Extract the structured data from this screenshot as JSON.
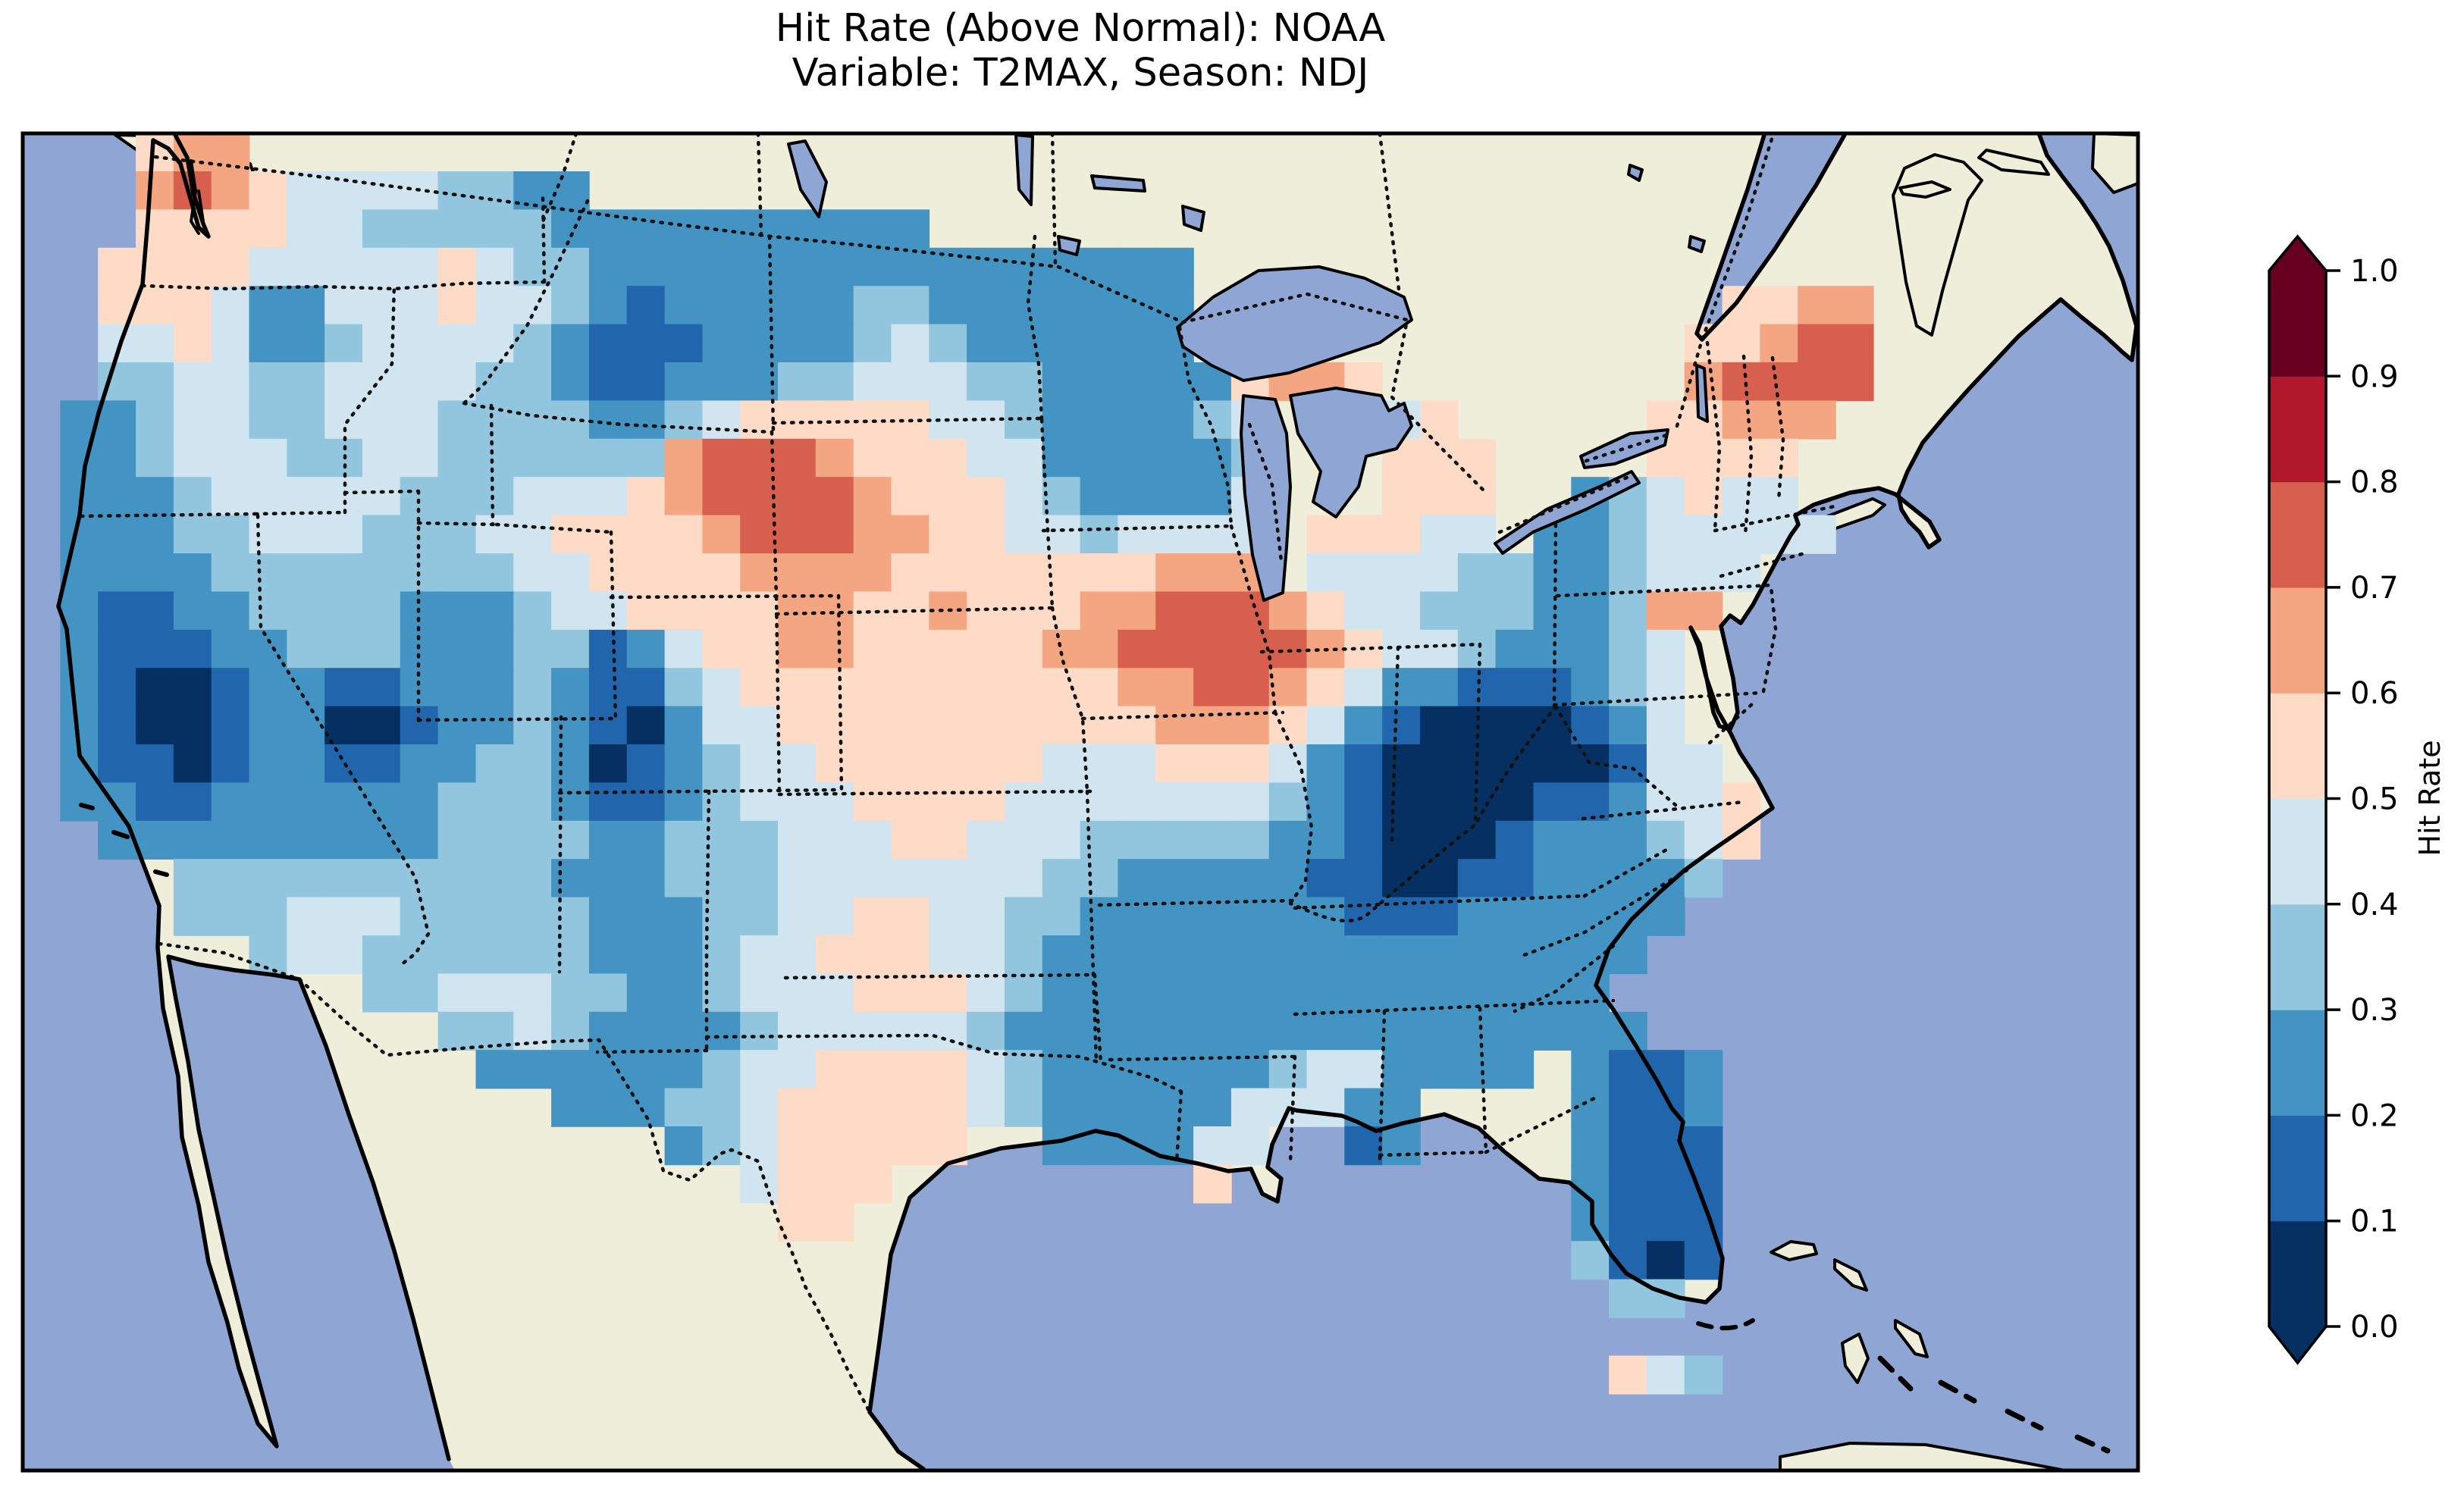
{
  "title": {
    "line1": "Hit Rate (Above Normal): NOAA",
    "line2": "Variable: T2MAX, Season: NDJ"
  },
  "colorbar": {
    "label": "Hit Rate",
    "tick_labels": [
      "0.0",
      "0.1",
      "0.2",
      "0.3",
      "0.4",
      "0.5",
      "0.6",
      "0.7",
      "0.8",
      "0.9",
      "1.0"
    ],
    "extend": "both"
  },
  "chart_data": {
    "type": "heatmap",
    "title": "Hit Rate (Above Normal): NOAA",
    "subtitle": "Variable: T2MAX, Season: NDJ",
    "metric": "Hit Rate (Above Normal)",
    "source_label": "NOAA",
    "variable": "T2MAX",
    "season": "NDJ",
    "region": "Contiguous United States map with Canada/Mexico land, state borders dotted",
    "colorbar_label": "Hit Rate",
    "value_range": [
      0.0,
      1.0
    ],
    "bin_edges": [
      0.0,
      0.1,
      0.2,
      0.3,
      0.4,
      0.5,
      0.6,
      0.7,
      0.8,
      0.9,
      1.0
    ],
    "bin_colors": [
      "#053061",
      "#2166ac",
      "#4393c3",
      "#92c5de",
      "#d1e5f0",
      "#fddbc7",
      "#f4a582",
      "#d6604d",
      "#b2182b",
      "#67001f"
    ],
    "map_colors": {
      "ocean": "#8fa6d4",
      "land": "#eeeedb",
      "coastline": "#000000",
      "borders": "#111111"
    },
    "grid": {
      "cols": 56,
      "rows": 35,
      "cell_encoding": "char k (0-9) = hit-rate bin [k/10,(k+1)/10); '.' = no data / outside CONUS",
      "rows_data": [
        "...566..................................................",
        "...676544443322.........................................",
        "...555544333332222222222................................",
        "..55554444454332222222222222222.........................",
        "..55542244454432122222332222222..............5566.......",
        "..44542234444321112222343222222.............55677.......",
        "..3344334444332112223344433222225665........67777.......",
        ".22344334443333223455555443222234...45.....55666........",
        ".22344433443333336777655544222223...555....5555.........",
        ".22234444433344456777765554322224...555..234544.........",
        ".22233444333445555677766554434444.55544.22344444........",
        ".22223333333344555566665555555666.444433223444..........",
        ".21122333322234455556655655566777654433322366...........",
        ".2111223332223312455665555566777776544322234............",
        ".2100122112223211345555555555667765422111234............",
        ".2100122001223210244555555555566654210000124............",
        ".21101221122332012344555555444555421000000144...........",
        ".221122222233321123444555544444443210000112445..........",
        "..22222222233332233344455444333332210001222345..........",
        "....33333333332223334444444332222211001122223...........",
        "....3334443333322233445544332222222111222222............",
        "......3443333332223445554432222222222222222.............",
        ".........334443322344455543222222222222222..............",
        "...........33432222344444322222222222222222.............",
        "............2222223445555432222223442222.2112...........",
        "..............22233455555432222244422....2112...........",
        ".................23455555..222244..12....2111...........",
        "...................4555........5.........2111...........",
        "....................55...................2111...........",
        ".........................................3101...........",
        "..........................................33............",
        "........................................................",
        "..........................................543...........",
        "........................................................",
        "........................................................"
      ]
    }
  }
}
